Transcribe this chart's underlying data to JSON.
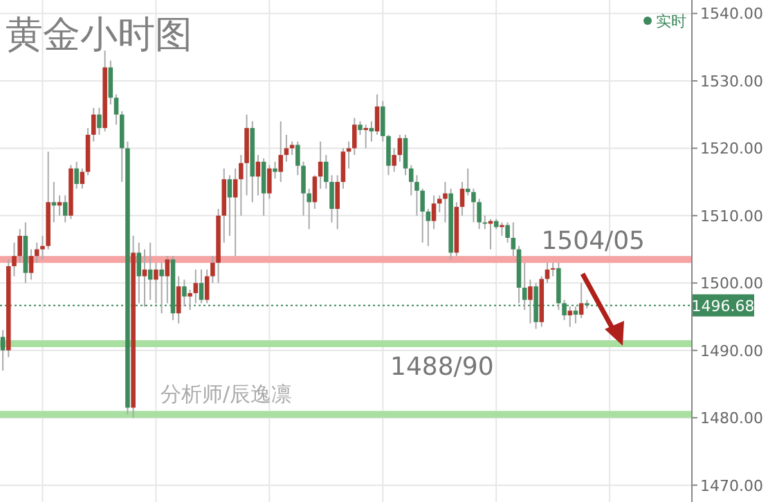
{
  "chart_data": {
    "type": "candlestick",
    "title": "黄金小时图",
    "categories": [
      null,
      null,
      null,
      null,
      null,
      null,
      null,
      null,
      null,
      null,
      null,
      null,
      null,
      null,
      null,
      null,
      null,
      null,
      null,
      null,
      null,
      null,
      null,
      null,
      null,
      null,
      null,
      null,
      null,
      null,
      null,
      null,
      null,
      null,
      null,
      null,
      null,
      null,
      null,
      null,
      null,
      null,
      null,
      null,
      null,
      null,
      null,
      null,
      null,
      null,
      null,
      null,
      null,
      null,
      null,
      null,
      null,
      null,
      null,
      null,
      null,
      null,
      null,
      null,
      null,
      null,
      null,
      null,
      null,
      null,
      null,
      null,
      null,
      null,
      null,
      null,
      null,
      null,
      null,
      null,
      null,
      null,
      null,
      null,
      null,
      null,
      null,
      null,
      null,
      null,
      null,
      null,
      null,
      null,
      null,
      null,
      null,
      null,
      null,
      null,
      null,
      null,
      null,
      null,
      null,
      null,
      null,
      null,
      null,
      null,
      null,
      null,
      null,
      null,
      null,
      null,
      null,
      null,
      null,
      null,
      null,
      null
    ],
    "ohlc": [
      [
        1492,
        1493,
        1487,
        1490
      ],
      [
        1490,
        1503.5,
        1489,
        1502.5
      ],
      [
        1502.5,
        1506,
        1501,
        1504
      ],
      [
        1504,
        1508,
        1503,
        1507
      ],
      [
        1507,
        1509,
        1500,
        1501.5
      ],
      [
        1501.5,
        1505,
        1500.5,
        1504
      ],
      [
        1504,
        1506,
        1503,
        1505
      ],
      [
        1505,
        1507,
        1503.5,
        1505.5
      ],
      [
        1505.5,
        1519.5,
        1505,
        1512
      ],
      [
        1512,
        1515,
        1509,
        1511.5
      ],
      [
        1511.5,
        1513,
        1510,
        1512
      ],
      [
        1512,
        1513,
        1509,
        1510
      ],
      [
        1510,
        1517.5,
        1509.5,
        1517
      ],
      [
        1517,
        1518,
        1514,
        1514.7
      ],
      [
        1514.7,
        1517,
        1514,
        1516.5
      ],
      [
        1516.5,
        1523,
        1516,
        1522
      ],
      [
        1522,
        1526,
        1521,
        1525
      ],
      [
        1525,
        1526,
        1522,
        1523
      ],
      [
        1523,
        1534.5,
        1522.5,
        1532
      ],
      [
        1532,
        1533,
        1526.5,
        1527.5
      ],
      [
        1527.5,
        1528,
        1523.5,
        1525
      ],
      [
        1525,
        1525.5,
        1515,
        1520
      ],
      [
        1520,
        1521,
        1480.5,
        1481.5
      ],
      [
        1481.5,
        1507,
        1480,
        1504.5
      ],
      [
        1504.5,
        1506,
        1497,
        1501
      ],
      [
        1501,
        1505,
        1496.5,
        1502
      ],
      [
        1502,
        1506,
        1497.5,
        1500.5
      ],
      [
        1500.5,
        1503,
        1497,
        1502
      ],
      [
        1502,
        1503,
        1495.5,
        1501
      ],
      [
        1501,
        1504,
        1497,
        1503.5
      ],
      [
        1503.5,
        1504,
        1494.5,
        1495.5
      ],
      [
        1495.5,
        1501,
        1494,
        1499.5
      ],
      [
        1499.5,
        1500.5,
        1496.5,
        1498
      ],
      [
        1498,
        1499,
        1496,
        1498.5
      ],
      [
        1498.5,
        1502,
        1497,
        1500
      ],
      [
        1500,
        1502,
        1497,
        1497.5
      ],
      [
        1497.5,
        1502,
        1497,
        1501
      ],
      [
        1501,
        1504,
        1500,
        1503
      ],
      [
        1503,
        1511,
        1500,
        1510
      ],
      [
        1510,
        1517,
        1506,
        1515.4
      ],
      [
        1515.4,
        1516,
        1507,
        1512.7
      ],
      [
        1512.7,
        1517,
        1504,
        1515.4
      ],
      [
        1515.4,
        1519,
        1510,
        1517.8
      ],
      [
        1517.8,
        1525,
        1513,
        1523
      ],
      [
        1523,
        1524,
        1512,
        1515.8
      ],
      [
        1515.8,
        1519,
        1513,
        1518
      ],
      [
        1518,
        1518.5,
        1510,
        1513.3
      ],
      [
        1513.3,
        1517.5,
        1512.5,
        1517
      ],
      [
        1517,
        1518,
        1515.5,
        1516.5
      ],
      [
        1516.5,
        1524,
        1515,
        1519
      ],
      [
        1519,
        1522,
        1518,
        1520
      ],
      [
        1520,
        1521,
        1519,
        1520.5
      ],
      [
        1520.5,
        1521,
        1516,
        1517.4
      ],
      [
        1517.4,
        1518,
        1510,
        1513.3
      ],
      [
        1513.3,
        1514,
        1508,
        1512
      ],
      [
        1512,
        1516,
        1511,
        1515.8
      ],
      [
        1515.8,
        1521,
        1514,
        1518
      ],
      [
        1518,
        1519,
        1514,
        1515
      ],
      [
        1515,
        1516,
        1509,
        1511
      ],
      [
        1511,
        1516,
        1508,
        1515
      ],
      [
        1515,
        1520,
        1514,
        1519.5
      ],
      [
        1519.5,
        1521,
        1517,
        1520
      ],
      [
        1520,
        1524.5,
        1519,
        1523.5
      ],
      [
        1523.5,
        1524,
        1522,
        1522.7
      ],
      [
        1522.7,
        1523.5,
        1520,
        1523
      ],
      [
        1523,
        1524,
        1521,
        1522.5
      ],
      [
        1522.5,
        1528,
        1522,
        1526.2
      ],
      [
        1526.2,
        1527,
        1521,
        1521.8
      ],
      [
        1521.8,
        1522,
        1516,
        1517.4
      ],
      [
        1517.4,
        1520,
        1516.5,
        1519
      ],
      [
        1519,
        1522,
        1518,
        1521.5
      ],
      [
        1521.5,
        1522,
        1516,
        1517
      ],
      [
        1517,
        1517.5,
        1513,
        1515
      ],
      [
        1515,
        1516,
        1510,
        1513.7
      ],
      [
        1513.7,
        1514,
        1506,
        1510.6
      ],
      [
        1510.6,
        1511,
        1505.5,
        1509.2
      ],
      [
        1509.2,
        1513,
        1508,
        1511.8
      ],
      [
        1511.8,
        1513,
        1510.5,
        1512.5
      ],
      [
        1512.5,
        1515,
        1509,
        1513.3
      ],
      [
        1513.3,
        1514,
        1503.5,
        1504.5
      ],
      [
        1504.5,
        1512,
        1504,
        1511.3
      ],
      [
        1511.3,
        1515,
        1510,
        1514
      ],
      [
        1514,
        1517,
        1513,
        1513.5
      ],
      [
        1513.5,
        1514,
        1509,
        1512
      ],
      [
        1512,
        1512.5,
        1508,
        1509
      ],
      [
        1509,
        1510,
        1508,
        1508.8
      ],
      [
        1508.8,
        1509.5,
        1505,
        1509.2
      ],
      [
        1509.2,
        1509.5,
        1508,
        1508.3
      ],
      [
        1508.3,
        1509,
        1507,
        1508.6
      ],
      [
        1508.6,
        1509,
        1506,
        1506.7
      ],
      [
        1506.7,
        1509,
        1504,
        1505
      ],
      [
        1505,
        1505.5,
        1497,
        1499.3
      ],
      [
        1499.3,
        1503,
        1496,
        1497.5
      ],
      [
        1497.5,
        1500.5,
        1494,
        1499.5
      ],
      [
        1499.5,
        1500,
        1493.2,
        1494.2
      ],
      [
        1494.2,
        1501,
        1493.5,
        1500.6
      ],
      [
        1500.6,
        1503,
        1500,
        1502
      ],
      [
        1502,
        1503,
        1501,
        1502.2
      ],
      [
        1502.2,
        1503,
        1496,
        1497
      ],
      [
        1497,
        1497.5,
        1494.5,
        1495.2
      ],
      [
        1495.2,
        1496.5,
        1493.5,
        1495.9
      ],
      [
        1495.9,
        1496.5,
        1494,
        1495.3
      ],
      [
        1495.3,
        1500,
        1494.8,
        1497
      ],
      [
        1497,
        1497.5,
        1496.2,
        1496.68
      ],
      null,
      null,
      null,
      null,
      null,
      null,
      null,
      null,
      null,
      null,
      null,
      null,
      null,
      null,
      null,
      null,
      null,
      null
    ],
    "colors": [
      "#3d8a5c",
      "#b5352b",
      "#b5352b",
      "#b5352b",
      "#3d8a5c",
      "#b5352b",
      "#b5352b",
      "#b5352b",
      "#b5352b",
      "#3d8a5c",
      "#b5352b",
      "#3d8a5c",
      "#b5352b",
      "#3d8a5c",
      "#b5352b",
      "#b5352b",
      "#b5352b",
      "#3d8a5c",
      "#b5352b",
      "#3d8a5c",
      "#3d8a5c",
      "#3d8a5c",
      "#3d8a5c",
      "#b5352b",
      "#3d8a5c",
      "#b5352b",
      "#3d8a5c",
      "#b5352b",
      "#3d8a5c",
      "#b5352b",
      "#3d8a5c",
      "#b5352b",
      "#3d8a5c",
      "#b5352b",
      "#b5352b",
      "#3d8a5c",
      "#b5352b",
      "#b5352b",
      "#b5352b",
      "#b5352b",
      "#3d8a5c",
      "#b5352b",
      "#b5352b",
      "#b5352b",
      "#3d8a5c",
      "#b5352b",
      "#3d8a5c",
      "#b5352b",
      "#3d8a5c",
      "#b5352b",
      "#b5352b",
      "#b5352b",
      "#3d8a5c",
      "#3d8a5c",
      "#3d8a5c",
      "#b5352b",
      "#b5352b",
      "#3d8a5c",
      "#3d8a5c",
      "#b5352b",
      "#b5352b",
      "#b5352b",
      "#b5352b",
      "#3d8a5c",
      "#b5352b",
      "#3d8a5c",
      "#b5352b",
      "#3d8a5c",
      "#3d8a5c",
      "#b5352b",
      "#b5352b",
      "#3d8a5c",
      "#3d8a5c",
      "#3d8a5c",
      "#3d8a5c",
      "#3d8a5c",
      "#b5352b",
      "#b5352b",
      "#b5352b",
      "#3d8a5c",
      "#b5352b",
      "#b5352b",
      "#3d8a5c",
      "#3d8a5c",
      "#3d8a5c",
      "#3d8a5c",
      "#b5352b",
      "#3d8a5c",
      "#b5352b",
      "#3d8a5c",
      "#3d8a5c",
      "#3d8a5c",
      "#3d8a5c",
      "#b5352b",
      "#3d8a5c",
      "#b5352b",
      "#b5352b",
      "#b5352b",
      "#3d8a5c",
      "#3d8a5c",
      "#b5352b",
      "#3d8a5c",
      "#b5352b",
      "#3d8a5c",
      null,
      null,
      null,
      null,
      null,
      null,
      null,
      null,
      null,
      null,
      null,
      null,
      null,
      null,
      null,
      null,
      null,
      null
    ],
    "ylim": [
      1467.5,
      1542
    ],
    "yticks": [
      {
        "value": 1470,
        "label": "1470.00"
      },
      {
        "value": 1480,
        "label": "1480.00"
      },
      {
        "value": 1490,
        "label": "1490.00"
      },
      {
        "value": 1500,
        "label": "1500.00"
      },
      {
        "value": 1510,
        "label": "1510.00"
      },
      {
        "value": 1520,
        "label": "1520.00"
      },
      {
        "value": 1530,
        "label": "1530.00"
      },
      {
        "value": 1540,
        "label": "1540.00"
      }
    ],
    "tick_labels": "y",
    "grid": true,
    "ref_lines": [
      {
        "axis": "y",
        "value": 1503.5,
        "label": null,
        "color": "#f5a3a3",
        "line_style": "solid"
      },
      {
        "axis": "y",
        "value": 1491,
        "label": null,
        "color": "#a9e0a2",
        "line_style": "solid"
      },
      {
        "axis": "y",
        "value": 1480.5,
        "label": null,
        "color": "#a9e0a2",
        "line_style": "solid"
      },
      {
        "axis": "y",
        "value": 1496.68,
        "label": "1496.68",
        "color": "#3d8a5c",
        "line_style": "dotted"
      }
    ],
    "annotations": [
      "1504/05",
      "1488/90",
      "分析师/辰逸凛",
      "实时"
    ]
  }
}
